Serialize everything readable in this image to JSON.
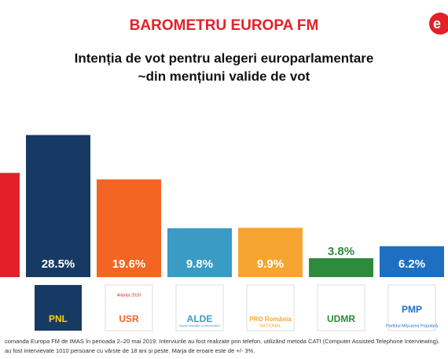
{
  "header": "BAROMETRU EUROPA FM",
  "brand_logo": "e",
  "chart_data": {
    "type": "bar",
    "title": [
      "Intenția de vot pentru alegeri europarlamentare",
      "~din mențiuni valide de vot"
    ],
    "categories": [
      null,
      "PNL",
      "USR",
      "ALDE",
      "PRO România",
      "UDMR",
      "PMP"
    ],
    "category_subtexts": [
      null,
      null,
      "Alianța 2020",
      "Alianța Liberalilor și Democraților",
      "NAȚIONAL",
      null,
      "Partidul Mișcarea Populară"
    ],
    "values": [
      20.9,
      28.5,
      19.6,
      9.8,
      9.9,
      3.8,
      6.2
    ],
    "value_labels": [
      "%",
      "28.5%",
      "19.6%",
      "9.8%",
      "9.9%",
      "3.8%",
      "6.2%"
    ],
    "colors": [
      "#e3202a",
      "#173a64",
      "#f26522",
      "#3a9bc4",
      "#f7a531",
      "#2e8b3e",
      "#1e6fc1"
    ],
    "ylim": [
      0,
      30
    ]
  },
  "footer": [
    "comanda Europa FM de IMAS în perioada 2–20 mai 2019. Interviurile au fost realizate prin telefon, utilizând metoda CATI (Computer Assisted Telephone Interviewing).",
    "au fost intervievate 1010 persoane cu vârste de 18 ani și peste. Marja de eroare este de +/- 3%."
  ]
}
